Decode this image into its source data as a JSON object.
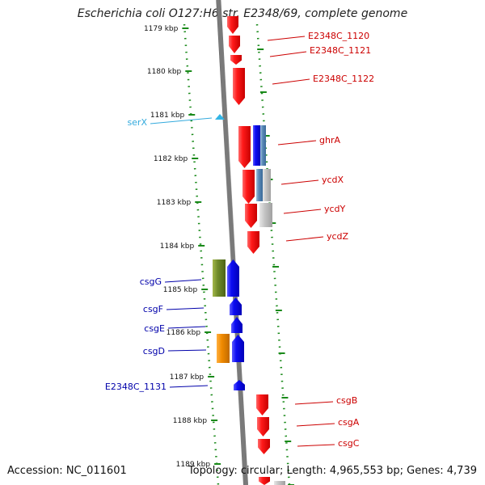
{
  "header": {
    "title": "Escherichia coli O127:H6 str. E2348/69, complete genome"
  },
  "footer": {
    "accession": "Accession: NC_011601",
    "topology": "Topology: circular; Length: 4,965,553 bp; Genes: 4,739"
  },
  "scale": {
    "ticks": [
      "1179 kbp",
      "1180 kbp",
      "1181 kbp",
      "1182 kbp",
      "1183 kbp",
      "1184 kbp",
      "1185 kbp",
      "1186 kbp",
      "1187 kbp",
      "1188 kbp",
      "1189 kbp"
    ]
  },
  "colors": {
    "ruler_green": "#1a8a1a",
    "backbone_gray": "#8c8c8c",
    "forward_red": "#ee1111",
    "reverse_blue": "#0b0bee",
    "rna_cyan": "#33b5e5",
    "label_red": "#cc0000",
    "label_blue": "#0000aa",
    "label_cyan": "#33aadd"
  },
  "features": [
    {
      "label": "E2348C_1120",
      "color": "red"
    },
    {
      "label": "E2348C_1121",
      "color": "red"
    },
    {
      "label": "E2348C_1122",
      "color": "red"
    },
    {
      "label": "serX",
      "color": "cyan"
    },
    {
      "label": "ghrA",
      "color": "red"
    },
    {
      "label": "ycdX",
      "color": "red"
    },
    {
      "label": "ycdY",
      "color": "red"
    },
    {
      "label": "ycdZ",
      "color": "red"
    },
    {
      "label": "csgG",
      "color": "blue"
    },
    {
      "label": "csgF",
      "color": "blue"
    },
    {
      "label": "csgE",
      "color": "blue"
    },
    {
      "label": "csgD",
      "color": "blue"
    },
    {
      "label": "E2348C_1131",
      "color": "blue"
    },
    {
      "label": "csgB",
      "color": "red"
    },
    {
      "label": "csgA",
      "color": "red"
    },
    {
      "label": "csgC",
      "color": "red"
    }
  ]
}
